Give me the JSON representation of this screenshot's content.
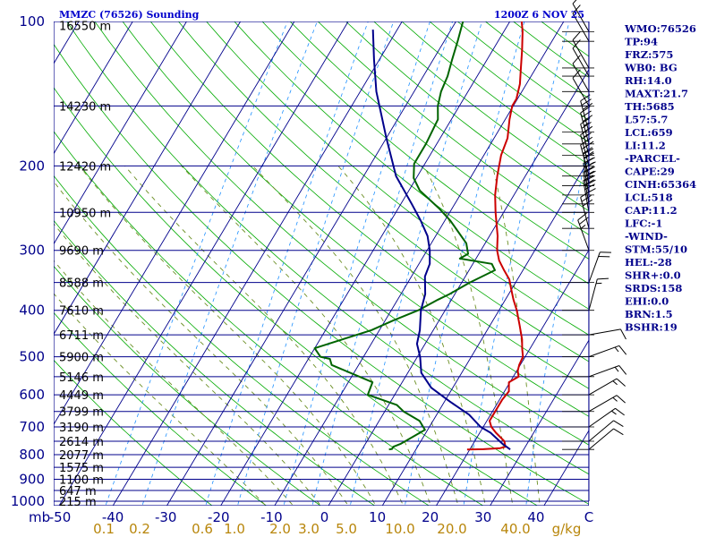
{
  "chart_data": {
    "type": "line",
    "title_left": "MMZC (76526) Sounding",
    "title_right": "1200Z  6 NOV 25",
    "pressure_unit_label": "mb",
    "mixing_ratio_unit_label": "g/kg",
    "pressure_ticks": [
      {
        "p": 100,
        "label": "100"
      },
      {
        "p": 200,
        "label": "200"
      },
      {
        "p": 300,
        "label": "300"
      },
      {
        "p": 400,
        "label": "400"
      },
      {
        "p": 500,
        "label": "500"
      },
      {
        "p": 600,
        "label": "600"
      },
      {
        "p": 700,
        "label": "700"
      },
      {
        "p": 800,
        "label": "800"
      },
      {
        "p": 900,
        "label": "900"
      },
      {
        "p": 1000,
        "label": "1000"
      }
    ],
    "height_levels": [
      {
        "p": 102,
        "label": "16550 m"
      },
      {
        "p": 150,
        "label": "14230 m"
      },
      {
        "p": 200,
        "label": "12420 m"
      },
      {
        "p": 250,
        "label": "10950 m"
      },
      {
        "p": 300,
        "label": "9690 m"
      },
      {
        "p": 350,
        "label": "8588 m"
      },
      {
        "p": 400,
        "label": "7610 m"
      },
      {
        "p": 450,
        "label": "6711 m"
      },
      {
        "p": 500,
        "label": "5900 m"
      },
      {
        "p": 550,
        "label": "5146 m"
      },
      {
        "p": 600,
        "label": "4449 m"
      },
      {
        "p": 650,
        "label": "3799 m"
      },
      {
        "p": 700,
        "label": "3190 m"
      },
      {
        "p": 750,
        "label": "2614 m"
      },
      {
        "p": 800,
        "label": "2077 m"
      },
      {
        "p": 850,
        "label": "1575 m"
      },
      {
        "p": 900,
        "label": "1100 m"
      },
      {
        "p": 950,
        "label": "647 m"
      },
      {
        "p": 1000,
        "label": "215 m"
      }
    ],
    "temperature_ticks": [
      "-50",
      "-40",
      "-30",
      "-20",
      "-10",
      "0",
      "10",
      "20",
      "30",
      "40",
      "C"
    ],
    "mixing_ratio_ticks": [
      "0.1",
      "0.2",
      "0.6",
      "1.0",
      "2.0",
      "3.0",
      "5.0",
      "10.0",
      "20.0",
      "40.0"
    ],
    "series": [
      {
        "name": "Temperature",
        "color": "#cc0000",
        "points": [
          [
            19.5,
            780
          ],
          [
            22.5,
            779
          ],
          [
            25.5,
            775
          ],
          [
            26.3,
            770
          ],
          [
            25.5,
            750
          ],
          [
            23,
            720
          ],
          [
            21.5,
            700
          ],
          [
            20.5,
            680
          ],
          [
            20.5,
            650
          ],
          [
            20.5,
            615
          ],
          [
            20.8,
            590
          ],
          [
            19.8,
            565
          ],
          [
            21,
            550
          ],
          [
            20.2,
            535
          ],
          [
            19.8,
            520
          ],
          [
            19.6,
            500
          ],
          [
            18.5,
            480
          ],
          [
            17.5,
            460
          ],
          [
            15.5,
            430
          ],
          [
            13.3,
            400
          ],
          [
            11.5,
            380
          ],
          [
            9.8,
            360
          ],
          [
            8.5,
            345
          ],
          [
            6.5,
            330
          ],
          [
            4.5,
            315
          ],
          [
            3,
            300
          ],
          [
            1.5,
            280
          ],
          [
            -1.5,
            250
          ],
          [
            -3.5,
            230
          ],
          [
            -5.2,
            210
          ],
          [
            -6.8,
            190
          ],
          [
            -7.5,
            175
          ],
          [
            -9.2,
            160
          ],
          [
            -10.2,
            150
          ],
          [
            -10.2,
            145
          ],
          [
            -11.2,
            135
          ],
          [
            -12.8,
            125
          ],
          [
            -14.5,
            115
          ],
          [
            -16.5,
            105
          ],
          [
            -17.8,
            100
          ]
        ]
      },
      {
        "name": "Dewpoint",
        "color": "#006400",
        "points": [
          [
            5,
            780
          ],
          [
            5.5,
            778
          ],
          [
            5.5,
            770
          ],
          [
            6.5,
            760
          ],
          [
            9.5,
            710
          ],
          [
            7.5,
            680
          ],
          [
            3.5,
            650
          ],
          [
            1.5,
            630
          ],
          [
            -5,
            600
          ],
          [
            -5.5,
            565
          ],
          [
            -15,
            520
          ],
          [
            -16,
            505
          ],
          [
            -18,
            500
          ],
          [
            -20,
            480
          ],
          [
            -11.5,
            440
          ],
          [
            -8.5,
            420
          ],
          [
            -5,
            400
          ],
          [
            -2.5,
            380
          ],
          [
            -1,
            370
          ],
          [
            1.5,
            350
          ],
          [
            4.8,
            330
          ],
          [
            3.5,
            320
          ],
          [
            -3,
            312
          ],
          [
            -2,
            305
          ],
          [
            -3.5,
            290
          ],
          [
            -9,
            260
          ],
          [
            -12.5,
            245
          ],
          [
            -18,
            225
          ],
          [
            -20.5,
            212
          ],
          [
            -22,
            198
          ],
          [
            -22,
            180
          ],
          [
            -22.5,
            160
          ],
          [
            -24,
            150
          ],
          [
            -25,
            140
          ],
          [
            -25.5,
            130
          ],
          [
            -26.5,
            120
          ],
          [
            -27.5,
            110
          ],
          [
            -28.7,
            100
          ]
        ]
      },
      {
        "name": "Parcel",
        "color": "#00008b",
        "points": [
          [
            27.5,
            780
          ],
          [
            25.5,
            760
          ],
          [
            22,
            720
          ],
          [
            19.5,
            700
          ],
          [
            16,
            660
          ],
          [
            11,
            620
          ],
          [
            6,
            580
          ],
          [
            2.5,
            540
          ],
          [
            0.5,
            500
          ],
          [
            -1.5,
            470
          ],
          [
            -2.5,
            440
          ],
          [
            -4.5,
            400
          ],
          [
            -5.5,
            370
          ],
          [
            -7.5,
            340
          ],
          [
            -8,
            320
          ],
          [
            -9.5,
            300
          ],
          [
            -11.5,
            280
          ],
          [
            -14.5,
            260
          ],
          [
            -18,
            240
          ],
          [
            -24,
            210
          ],
          [
            -30,
            175
          ],
          [
            -37,
            140
          ],
          [
            -41,
            120
          ],
          [
            -44.5,
            104
          ]
        ]
      }
    ],
    "wind_barbs": [
      {
        "p": 105,
        "dir": 330,
        "spd": 10
      },
      {
        "p": 110,
        "dir": 330,
        "spd": 10
      },
      {
        "p": 125,
        "dir": 330,
        "spd": 10
      },
      {
        "p": 130,
        "dir": 330,
        "spd": 10
      },
      {
        "p": 140,
        "dir": 330,
        "spd": 10
      },
      {
        "p": 150,
        "dir": 330,
        "spd": 10
      },
      {
        "p": 170,
        "dir": 345,
        "spd": 30
      },
      {
        "p": 180,
        "dir": 345,
        "spd": 35
      },
      {
        "p": 190,
        "dir": 345,
        "spd": 35
      },
      {
        "p": 200,
        "dir": 345,
        "spd": 40
      },
      {
        "p": 210,
        "dir": 345,
        "spd": 40
      },
      {
        "p": 220,
        "dir": 350,
        "spd": 40
      },
      {
        "p": 230,
        "dir": 350,
        "spd": 40
      },
      {
        "p": 240,
        "dir": 350,
        "spd": 40
      },
      {
        "p": 250,
        "dir": 350,
        "spd": 40
      },
      {
        "p": 270,
        "dir": 345,
        "spd": 30
      },
      {
        "p": 300,
        "dir": 340,
        "spd": 25
      },
      {
        "p": 350,
        "dir": 20,
        "spd": 20
      },
      {
        "p": 400,
        "dir": 15,
        "spd": 15
      },
      {
        "p": 450,
        "dir": 80,
        "spd": 10
      },
      {
        "p": 500,
        "dir": 70,
        "spd": 15
      },
      {
        "p": 550,
        "dir": 70,
        "spd": 15
      },
      {
        "p": 600,
        "dir": 60,
        "spd": 15
      },
      {
        "p": 650,
        "dir": 60,
        "spd": 15
      },
      {
        "p": 700,
        "dir": 55,
        "spd": 15
      },
      {
        "p": 750,
        "dir": 50,
        "spd": 10
      },
      {
        "p": 780,
        "dir": 50,
        "spd": 10
      }
    ],
    "indices": [
      "WMO:76526",
      "TP:94",
      "FRZ:575",
      "WB0: BG",
      "RH:14.0",
      "MAXT:21.7",
      "TH:5685",
      "L57:5.7",
      "LCL:659",
      "LI:11.2",
      "-PARCEL-",
      "CAPE:29",
      "CINH:65364",
      "LCL:518",
      "CAP:11.2",
      "LFC:-1",
      "-WIND-",
      "STM:55/10",
      "HEL:-28",
      "SHR+:0.0",
      "SRDS:158",
      "EHI:0.0",
      "BRN:1.5",
      "BSHR:19"
    ],
    "colors": {
      "isobar": "#00008b",
      "isotherm": "#00008b",
      "dry_adiabat": "#00aa00",
      "moist_adiabat": "#6b8e23",
      "mixing_ratio": "#1e90ff",
      "mixing_ratio_label": "#b8860b",
      "temperature": "#cc0000",
      "dewpoint": "#006400",
      "parcel": "#00008b"
    }
  }
}
